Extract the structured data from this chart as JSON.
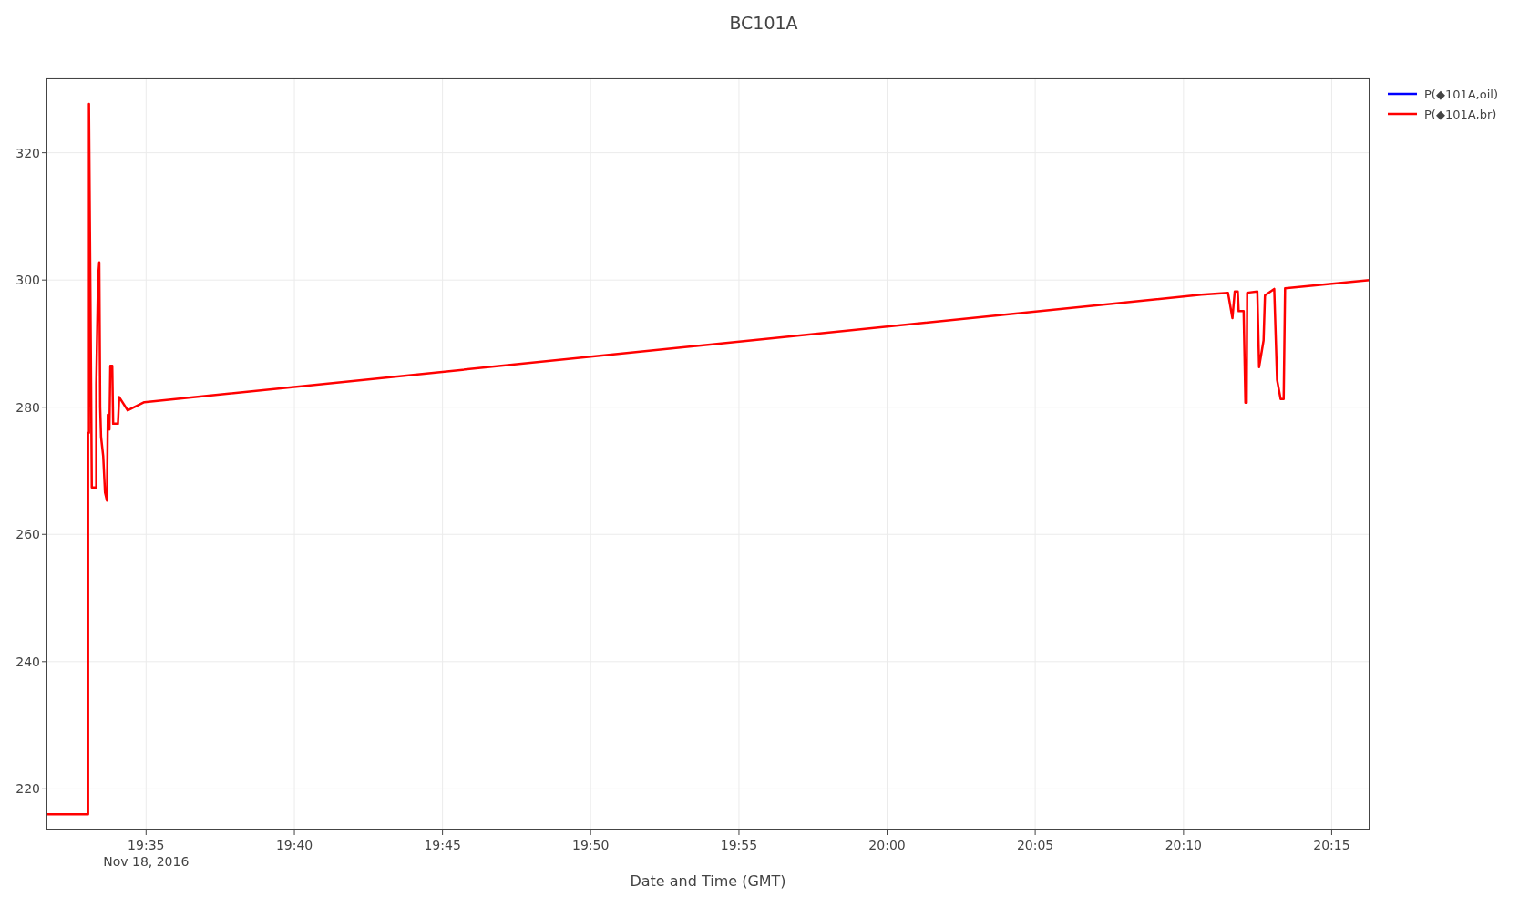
{
  "chart_data": {
    "type": "line",
    "title": "BC101A",
    "xlabel": "Date and Time (GMT)",
    "xlim": [
      19.5273,
      20.2713
    ],
    "ylim": [
      213.6,
      331.7
    ],
    "xticks": [
      {
        "value": 19.5833,
        "label": "19:35\nNov 18, 2016"
      },
      {
        "value": 19.6667,
        "label": "19:40"
      },
      {
        "value": 19.75,
        "label": "19:45"
      },
      {
        "value": 19.8333,
        "label": "19:50"
      },
      {
        "value": 19.9167,
        "label": "19:55"
      },
      {
        "value": 20,
        "label": "20:00"
      },
      {
        "value": 20.0833,
        "label": "20:05"
      },
      {
        "value": 20.1667,
        "label": "20:10"
      },
      {
        "value": 20.25,
        "label": "20:15"
      }
    ],
    "yticks": [
      220,
      240,
      260,
      280,
      300,
      320
    ],
    "grid": true,
    "legend": "top right",
    "marker": "none",
    "line_style": "solid",
    "series": [
      {
        "name": "P(◆101A,oil)",
        "color": "#0000ff"
      },
      {
        "name": "P(◆101A,br)",
        "color": "#ff0000",
        "x": [
          19.5273,
          19.5507,
          19.5507,
          19.5512,
          19.5512,
          19.5524,
          19.5528,
          19.5553,
          19.5553,
          19.556,
          19.5563,
          19.557,
          19.5575,
          19.558,
          19.5592,
          19.5602,
          19.5613,
          19.5618,
          19.5627,
          19.5632,
          19.5643,
          19.5648,
          19.5675,
          19.5682,
          19.573,
          19.5823,
          20.1767,
          20.1917,
          20.1942,
          20.1955,
          20.1972,
          20.1977,
          20.2005,
          20.2015,
          20.2022,
          20.2025,
          20.2082,
          20.2092,
          20.2117,
          20.2125,
          20.2177,
          20.2193,
          20.2213,
          20.223,
          20.2238,
          20.2713
        ],
        "values": [
          216,
          216,
          276,
          276,
          327.7,
          283.8,
          267.4,
          267.4,
          283.6,
          295,
          300.3,
          302.8,
          280,
          275.3,
          272.3,
          266.6,
          265.3,
          278.8,
          276.5,
          286.5,
          286.5,
          277.4,
          277.4,
          281.6,
          279.5,
          280.8,
          297.7,
          298,
          294,
          298.2,
          298.2,
          295.1,
          295.1,
          280.7,
          280.7,
          298,
          298.2,
          286.3,
          290.5,
          297.6,
          298.6,
          284.3,
          281.3,
          281.3,
          298.7,
          300
        ]
      }
    ]
  }
}
